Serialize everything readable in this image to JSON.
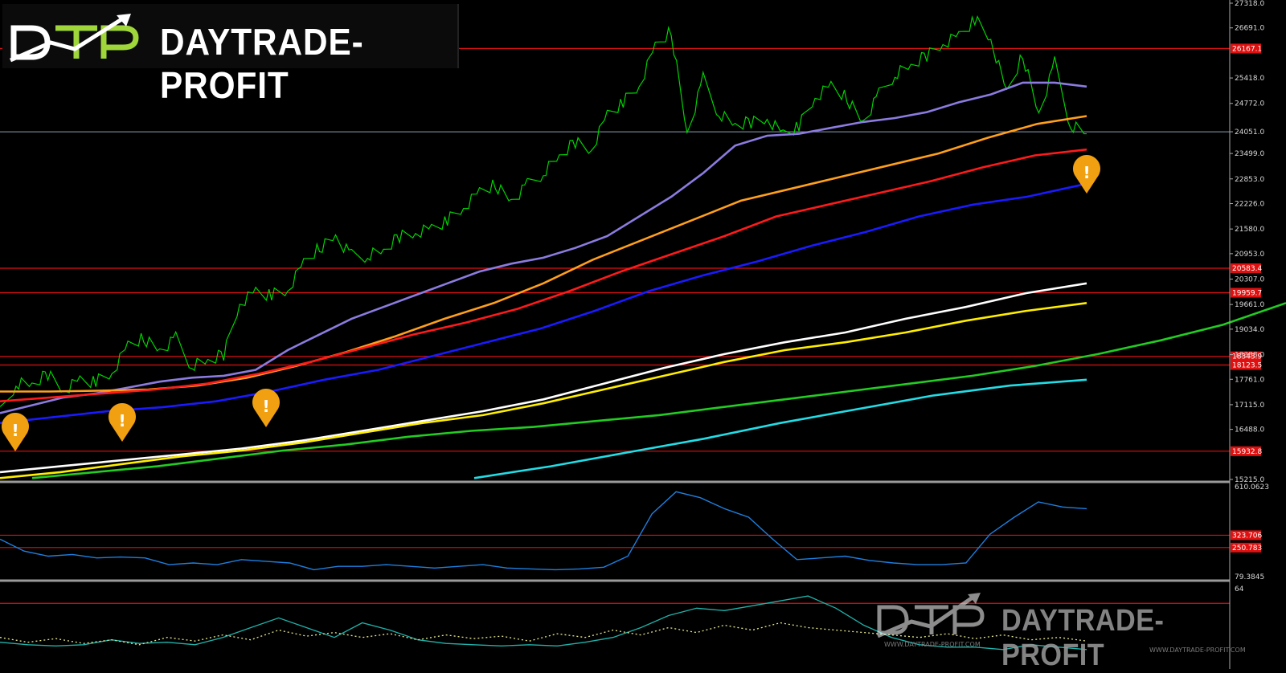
{
  "chart_data": [
    {
      "type": "line",
      "panel": "price",
      "title": "",
      "xlabel": "",
      "ylabel": "",
      "ylim": [
        15215.0,
        27318.0
      ],
      "grid": false,
      "y_ticks": [
        "27318.0",
        "26691.0",
        "25418.0",
        "24772.0",
        "24051.0",
        "23499.0",
        "22853.0",
        "22226.0",
        "21580.0",
        "20953.0",
        "20307.0",
        "19661.0",
        "19034.0",
        "18388.0",
        "17761.0",
        "17115.0",
        "16488.0",
        "15215.0"
      ],
      "last_price": 24051.0,
      "support_resistance_levels": [
        {
          "value": 26167.1,
          "label": "26167.1"
        },
        {
          "value": 20583.4,
          "label": "20583.4"
        },
        {
          "value": 19959.7,
          "label": "19959.7"
        },
        {
          "value": 18343.9,
          "label": "18343.9"
        },
        {
          "value": 18123.5,
          "label": "18123.5"
        },
        {
          "value": 15932.8,
          "label": "15932.8"
        }
      ],
      "series": [
        {
          "role": "price",
          "color": "#00d200",
          "values": [
            16900,
            17650,
            17600,
            17900,
            17500,
            17750,
            17700,
            17900,
            18600,
            18800,
            18500,
            18800,
            18100,
            18200,
            18400,
            19700,
            20000,
            19900,
            20000,
            20700,
            21100,
            21400,
            20900,
            20900,
            21000,
            21400,
            21500,
            21600,
            21800,
            22100,
            22500,
            22700,
            22300,
            22700,
            23000,
            23400,
            23800,
            23600,
            24500,
            24800,
            25200,
            26200,
            26600,
            24000,
            25400,
            24500,
            24200,
            24300,
            24400,
            24000,
            24200,
            24900,
            25200,
            24900,
            24300,
            25000,
            25500,
            25700,
            26000,
            26300,
            26500,
            26900,
            26400,
            25000,
            26000,
            24500,
            25800,
            24200,
            24000
          ]
        },
        {
          "role": "ma",
          "color": "#8c7be0",
          "values": [
            16900,
            17100,
            17300,
            17400,
            17550,
            17700,
            17800,
            17850,
            18000,
            18500,
            18900,
            19300,
            19600,
            19900,
            20200,
            20500,
            20700,
            20850,
            21100,
            21400,
            21900,
            22400,
            23000,
            23700,
            23950,
            24000,
            24150,
            24300,
            24400,
            24550,
            24800,
            25000,
            25300,
            25300,
            25200
          ]
        },
        {
          "role": "ma",
          "color": "#ff9f1c",
          "values": [
            17450,
            17450,
            17470,
            17500,
            17600,
            17800,
            18100,
            18450,
            18850,
            19300,
            19700,
            20200,
            20800,
            21300,
            21800,
            22300,
            22600,
            22900,
            23200,
            23500,
            23900,
            24250,
            24450
          ]
        },
        {
          "role": "ma",
          "color": "#ff1a1a",
          "values": [
            17200,
            17300,
            17400,
            17500,
            17650,
            17900,
            18200,
            18550,
            18900,
            19200,
            19550,
            20000,
            20500,
            20950,
            21400,
            21900,
            22200,
            22500,
            22800,
            23150,
            23450,
            23600
          ]
        },
        {
          "role": "ma",
          "color": "#1a1aff",
          "values": [
            16650,
            16800,
            16950,
            17050,
            17200,
            17450,
            17750,
            18000,
            18350,
            18700,
            19050,
            19500,
            20000,
            20400,
            20750,
            21150,
            21500,
            21900,
            22200,
            22400,
            22700
          ]
        },
        {
          "role": "ma",
          "color": "#ffffff",
          "values": [
            15400,
            15550,
            15700,
            15850,
            16000,
            16200,
            16450,
            16700,
            16950,
            17250,
            17650,
            18050,
            18400,
            18700,
            18950,
            19300,
            19600,
            19950,
            20200
          ]
        },
        {
          "role": "ma",
          "color": "#ffee00",
          "values": [
            15250,
            15400,
            15600,
            15800,
            15950,
            16150,
            16400,
            16650,
            16850,
            17150,
            17500,
            17850,
            18200,
            18500,
            18700,
            18950,
            19250,
            19500,
            19700
          ]
        },
        {
          "role": "ma",
          "color": "#22cc22",
          "values": [
            15250,
            15400,
            15550,
            15750,
            15950,
            16100,
            16300,
            16450,
            16550,
            16700,
            16850,
            17050,
            17250,
            17450,
            17650,
            17850,
            18100,
            18400,
            18750,
            19150,
            19700
          ]
        },
        {
          "role": "ma",
          "color": "#22dde6",
          "values": [
            15250,
            15550,
            15900,
            16250,
            16650,
            17000,
            17350,
            17600,
            17750
          ]
        }
      ],
      "annotations": [
        {
          "type": "marker",
          "symbol": "!",
          "color": "#f0a010"
        },
        {
          "type": "marker",
          "symbol": "!",
          "color": "#f0a010"
        },
        {
          "type": "marker",
          "symbol": "!",
          "color": "#f0a010"
        },
        {
          "type": "marker",
          "symbol": "!",
          "color": "#f0a010"
        }
      ]
    },
    {
      "type": "line",
      "panel": "indicator-1",
      "title": "",
      "xlabel": "",
      "ylabel": "",
      "ylim": [
        79.3845,
        610.0623
      ],
      "y_ticks": [
        "610.0623",
        "79.3845"
      ],
      "levels": [
        {
          "value": 323.706,
          "label": "323.706"
        },
        {
          "value": 250.783,
          "label": "250.783"
        }
      ],
      "series": [
        {
          "color": "#1e7fe0",
          "values": [
            300,
            230,
            200,
            210,
            190,
            195,
            190,
            150,
            160,
            150,
            180,
            170,
            160,
            120,
            140,
            140,
            150,
            140,
            130,
            140,
            150,
            130,
            125,
            120,
            125,
            135,
            200,
            450,
            580,
            545,
            480,
            430,
            300,
            180,
            190,
            200,
            175,
            160,
            150,
            150,
            160,
            330,
            430,
            520,
            490,
            480
          ]
        }
      ]
    },
    {
      "type": "line",
      "panel": "indicator-2",
      "title": "",
      "xlabel": "",
      "ylabel": "",
      "ylim": [
        0,
        64
      ],
      "y_ticks": [
        "64"
      ],
      "levels": [
        {
          "value": 50
        }
      ],
      "series": [
        {
          "color": "#20b2aa",
          "style": "solid",
          "values": [
            18,
            16,
            15,
            16,
            20,
            17,
            18,
            16,
            22,
            30,
            38,
            30,
            22,
            34,
            28,
            20,
            17,
            16,
            15,
            16,
            15,
            18,
            22,
            30,
            40,
            46,
            44,
            48,
            52,
            56,
            46,
            32,
            22,
            16,
            14,
            14,
            12,
            16,
            14,
            12
          ]
        },
        {
          "color": "#e8e890",
          "style": "dotted",
          "values": [
            22,
            18,
            21,
            17,
            20,
            16,
            22,
            19,
            24,
            20,
            28,
            23,
            26,
            22,
            25,
            20,
            24,
            21,
            23,
            19,
            25,
            22,
            28,
            24,
            30,
            26,
            32,
            28,
            34,
            30,
            28,
            26,
            24,
            22,
            25,
            21,
            24,
            20,
            22,
            19
          ]
        }
      ]
    }
  ],
  "branding": {
    "logo_mark": "DTP",
    "logo_text": "DAYTRADE-PROFIT",
    "watermark_text": "DAYTRADE-PROFIT",
    "watermark_url_1": "WWW.DAYTRADE-PROFIT.COM",
    "watermark_url_2": "WWW.DAYTRADE-PROFIT.COM"
  }
}
